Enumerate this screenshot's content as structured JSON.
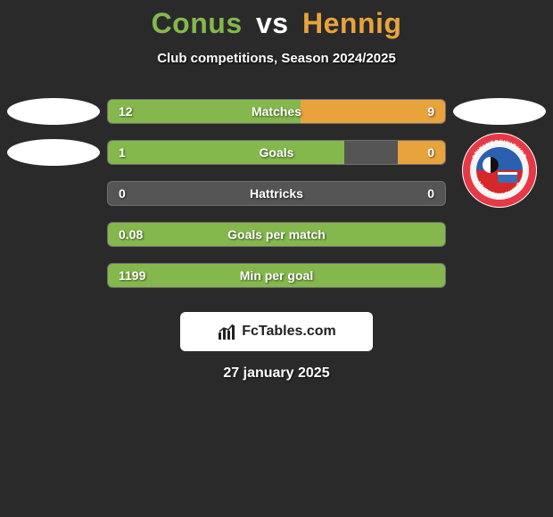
{
  "title": {
    "player1": "Conus",
    "vs": "vs",
    "player2": "Hennig"
  },
  "subtitle": "Club competitions, Season 2024/2025",
  "colors": {
    "player1": "#84b84c",
    "player2": "#e8a33d",
    "bar_bg": "#555555",
    "background": "#2a2a2a",
    "text": "#ffffff"
  },
  "bars": [
    {
      "label": "Matches",
      "left_val": "12",
      "right_val": "9",
      "left_pct": 57.1,
      "right_pct": 42.9
    },
    {
      "label": "Goals",
      "left_val": "1",
      "right_val": "0",
      "left_pct": 70.0,
      "right_pct": 14.0
    },
    {
      "label": "Hattricks",
      "left_val": "0",
      "right_val": "0",
      "left_pct": 0.0,
      "right_pct": 0.0
    },
    {
      "label": "Goals per match",
      "left_val": "0.08",
      "right_val": "",
      "left_pct": 100.0,
      "right_pct": 0.0
    },
    {
      "label": "Min per goal",
      "left_val": "1199",
      "right_val": "",
      "left_pct": 100.0,
      "right_pct": 0.0
    }
  ],
  "left_badges": [
    true,
    true,
    false,
    false,
    false
  ],
  "right_badges": [
    true,
    "club",
    false,
    false,
    false
  ],
  "club_badge": {
    "top_text": "SPIELVEREINIGUNG",
    "bottom_text": "UNTERHACHING",
    "outer_ring": "#e63946",
    "mid_ring": "#f4f4f4",
    "inner_top": "#2b5fb0",
    "inner_bottom": "#d62828"
  },
  "brand": {
    "text": "FcTables.com"
  },
  "date": "27 january 2025"
}
